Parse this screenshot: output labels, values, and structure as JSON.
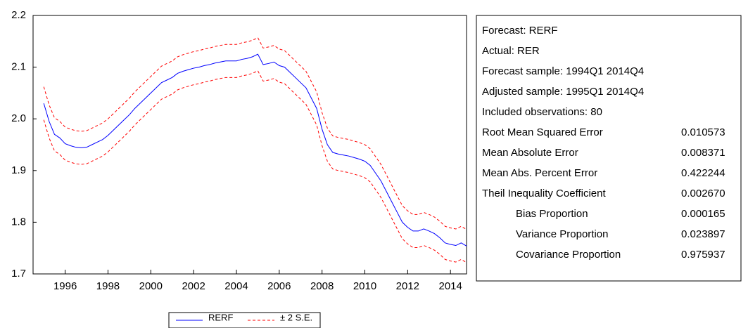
{
  "chart_data": {
    "type": "line",
    "x": [
      1995,
      1995.25,
      1995.5,
      1995.75,
      1996,
      1996.25,
      1996.5,
      1996.75,
      1997,
      1997.25,
      1997.5,
      1997.75,
      1998,
      1998.25,
      1998.5,
      1998.75,
      1999,
      1999.25,
      1999.5,
      1999.75,
      2000,
      2000.25,
      2000.5,
      2000.75,
      2001,
      2001.25,
      2001.5,
      2001.75,
      2002,
      2002.25,
      2002.5,
      2002.75,
      2003,
      2003.25,
      2003.5,
      2003.75,
      2004,
      2004.25,
      2004.5,
      2004.75,
      2005,
      2005.25,
      2005.5,
      2005.75,
      2006,
      2006.25,
      2006.5,
      2006.75,
      2007,
      2007.25,
      2007.5,
      2007.75,
      2008,
      2008.25,
      2008.5,
      2008.75,
      2009,
      2009.25,
      2009.5,
      2009.75,
      2010,
      2010.25,
      2010.5,
      2010.75,
      2011,
      2011.25,
      2011.5,
      2011.75,
      2012,
      2012.25,
      2012.5,
      2012.75,
      2013,
      2013.25,
      2013.5,
      2013.75,
      2014,
      2014.25,
      2014.5,
      2014.75
    ],
    "series": [
      {
        "name": "RERF",
        "color": "#0000ff",
        "values": [
          2.03,
          1.995,
          1.97,
          1.963,
          1.952,
          1.948,
          1.945,
          1.944,
          1.945,
          1.95,
          1.955,
          1.96,
          1.968,
          1.978,
          1.988,
          1.998,
          2.008,
          2.02,
          2.03,
          2.04,
          2.05,
          2.06,
          2.07,
          2.075,
          2.08,
          2.088,
          2.092,
          2.095,
          2.098,
          2.1,
          2.103,
          2.105,
          2.108,
          2.11,
          2.112,
          2.112,
          2.112,
          2.115,
          2.117,
          2.12,
          2.125,
          2.105,
          2.107,
          2.11,
          2.103,
          2.1,
          2.09,
          2.08,
          2.07,
          2.06,
          2.04,
          2.02,
          1.98,
          1.95,
          1.935,
          1.932,
          1.93,
          1.928,
          1.925,
          1.922,
          1.918,
          1.91,
          1.895,
          1.88,
          1.86,
          1.84,
          1.82,
          1.8,
          1.79,
          1.783,
          1.783,
          1.787,
          1.783,
          1.778,
          1.77,
          1.76,
          1.757,
          1.755,
          1.76,
          1.754
        ]
      },
      {
        "name": "± 2 S.E.",
        "color": "#ff0000",
        "upper": [
          2.062,
          2.027,
          2.002,
          1.995,
          1.984,
          1.98,
          1.977,
          1.976,
          1.977,
          1.982,
          1.987,
          1.992,
          2.0,
          2.01,
          2.02,
          2.03,
          2.04,
          2.052,
          2.062,
          2.072,
          2.082,
          2.092,
          2.102,
          2.107,
          2.112,
          2.12,
          2.124,
          2.127,
          2.13,
          2.132,
          2.135,
          2.137,
          2.14,
          2.142,
          2.144,
          2.144,
          2.144,
          2.147,
          2.149,
          2.152,
          2.157,
          2.137,
          2.139,
          2.142,
          2.135,
          2.132,
          2.122,
          2.112,
          2.102,
          2.092,
          2.072,
          2.052,
          2.012,
          1.982,
          1.967,
          1.964,
          1.962,
          1.96,
          1.957,
          1.954,
          1.95,
          1.942,
          1.927,
          1.912,
          1.892,
          1.872,
          1.852,
          1.832,
          1.822,
          1.815,
          1.815,
          1.819,
          1.815,
          1.81,
          1.802,
          1.792,
          1.789,
          1.787,
          1.792,
          1.786
        ],
        "lower": [
          1.998,
          1.963,
          1.938,
          1.931,
          1.92,
          1.916,
          1.913,
          1.912,
          1.913,
          1.918,
          1.923,
          1.928,
          1.936,
          1.946,
          1.956,
          1.966,
          1.976,
          1.988,
          1.998,
          2.008,
          2.018,
          2.028,
          2.038,
          2.043,
          2.048,
          2.056,
          2.06,
          2.063,
          2.066,
          2.068,
          2.071,
          2.073,
          2.076,
          2.078,
          2.08,
          2.08,
          2.08,
          2.083,
          2.085,
          2.088,
          2.093,
          2.073,
          2.075,
          2.078,
          2.071,
          2.068,
          2.058,
          2.048,
          2.038,
          2.028,
          2.008,
          1.988,
          1.948,
          1.918,
          1.903,
          1.9,
          1.898,
          1.896,
          1.893,
          1.89,
          1.886,
          1.878,
          1.863,
          1.848,
          1.828,
          1.808,
          1.788,
          1.768,
          1.758,
          1.751,
          1.751,
          1.755,
          1.751,
          1.746,
          1.738,
          1.728,
          1.725,
          1.723,
          1.728,
          1.722
        ]
      }
    ],
    "xlim": [
      1994.5,
      2014.75
    ],
    "xticks": [
      1996,
      1998,
      2000,
      2002,
      2004,
      2006,
      2008,
      2010,
      2012,
      2014
    ],
    "ylim": [
      1.7,
      2.2
    ],
    "yticks": [
      1.7,
      1.8,
      1.9,
      {
        "value": 2.0,
        "label": "2.0"
      },
      2.1,
      2.2
    ]
  },
  "table": {
    "lines": [
      "Forecast: RERF",
      "Actual: RER",
      "Forecast sample: 1994Q1 2014Q4",
      "Adjusted sample: 1995Q1 2014Q4",
      "Included observations: 80"
    ],
    "stats": [
      {
        "label": "Root Mean Squared Error",
        "value": "0.010573"
      },
      {
        "label": "Mean Absolute Error",
        "value": "0.008371"
      },
      {
        "label": "Mean Abs. Percent Error",
        "value": "0.422244"
      },
      {
        "label": "Theil Inequality Coefficient",
        "value": "0.002670",
        "components": [
          {
            "label": "Bias Proportion",
            "value": "0.000165"
          },
          {
            "label": "Variance Proportion",
            "value": "0.023897"
          },
          {
            "label": "Covariance Proportion",
            "value": "0.975937"
          }
        ]
      }
    ]
  }
}
